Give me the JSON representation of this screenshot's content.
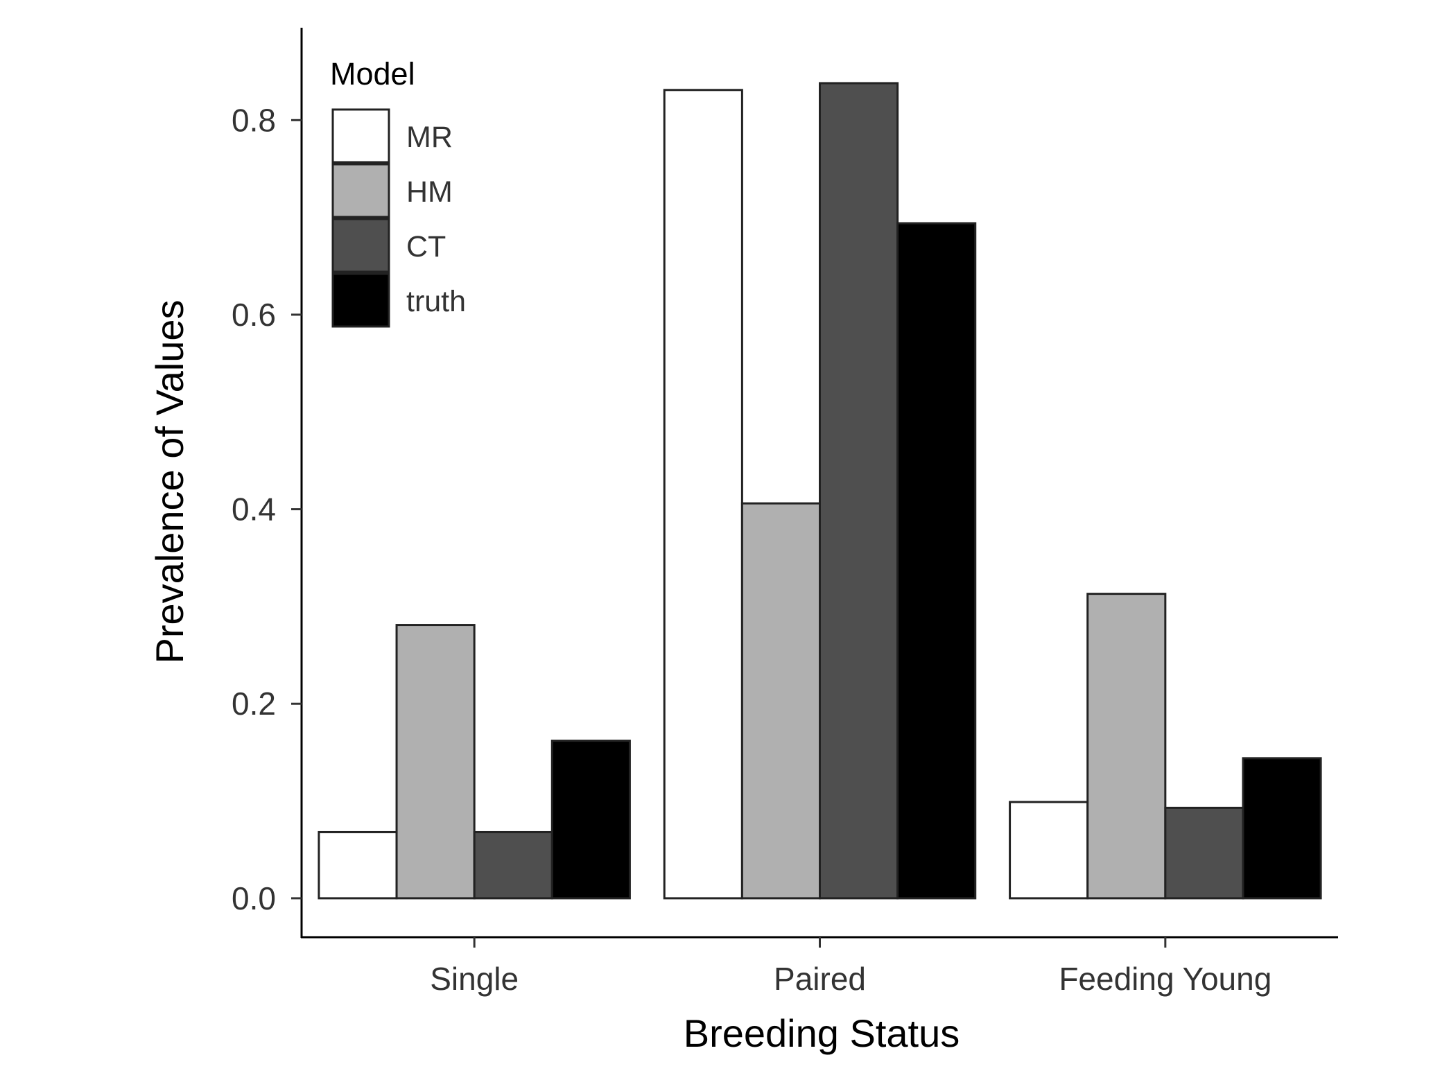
{
  "chart_data": {
    "type": "bar",
    "xlabel": "Breeding Status",
    "ylabel": "Prevalence of Values",
    "categories": [
      "Single",
      "Paired",
      "Feeding Young"
    ],
    "series": [
      {
        "name": "MR",
        "color": "#ffffff",
        "values": [
          0.068,
          0.831,
          0.099
        ]
      },
      {
        "name": "HM",
        "color": "#b0b0b0",
        "values": [
          0.281,
          0.406,
          0.313
        ]
      },
      {
        "name": "CT",
        "color": "#4f4f4f",
        "values": [
          0.068,
          0.838,
          0.093
        ]
      },
      {
        "name": "truth",
        "color": "#000000",
        "values": [
          0.162,
          0.694,
          0.144
        ]
      }
    ],
    "ylim": [
      -0.04,
      0.895
    ],
    "yticks": [
      0.0,
      0.2,
      0.4,
      0.6,
      0.8
    ],
    "ytick_labels": [
      "0.0",
      "0.2",
      "0.4",
      "0.6",
      "0.8"
    ],
    "legend": {
      "title": "Model",
      "position": "top-left"
    },
    "grid": false
  }
}
